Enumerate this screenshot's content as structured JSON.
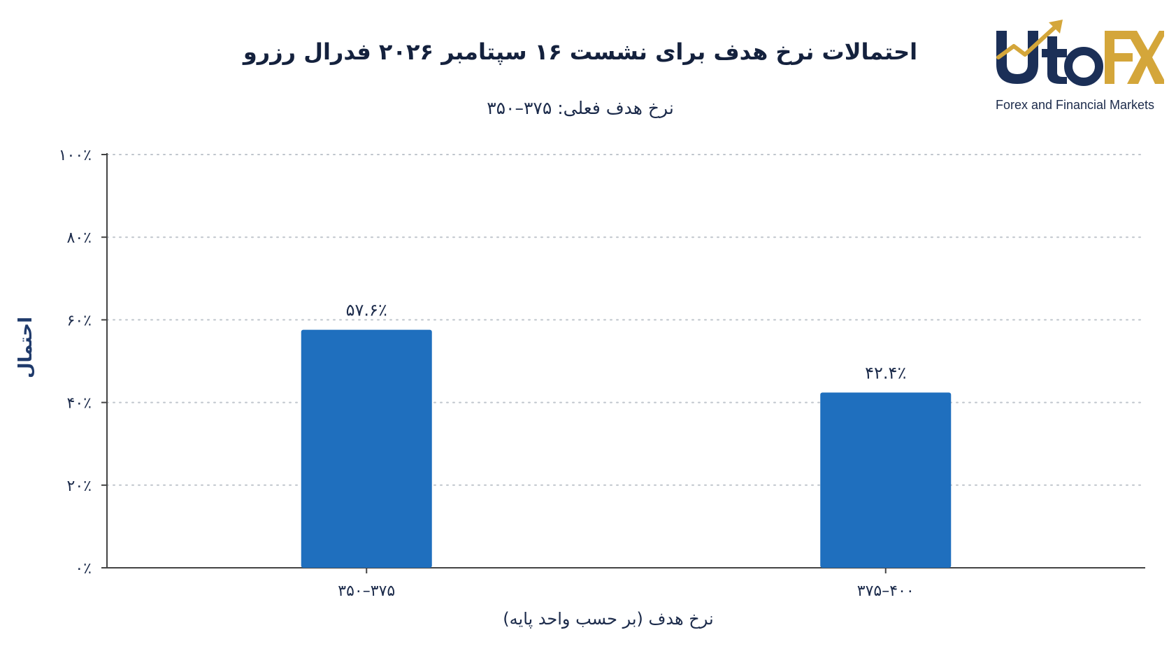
{
  "header": {
    "title": "احتمالات نرخ هدف برای نشست ۱۶ سپتامبر ۲۰۲۶ فدرال رزرو",
    "subtitle": "نرخ هدف فعلی: ۳۷۵–۳۵۰"
  },
  "logo": {
    "brand": "UtoFX",
    "tagline": "Forex and Financial Markets",
    "colors": {
      "navy": "#1b2f57",
      "gold": "#d4a63a"
    }
  },
  "colors": {
    "bar": "#1f6fbe",
    "grid": "#bfc5cc",
    "axis": "#444444",
    "text": "#1b2a4a"
  },
  "chart_data": {
    "type": "bar",
    "title": "احتمالات نرخ هدف برای نشست ۱۶ سپتامبر ۲۰۲۶ فدرال رزرو",
    "subtitle": "نرخ هدف فعلی: ۳۷۵–۳۵۰",
    "categories": [
      "۳۵۰–۳۷۵",
      "۳۷۵–۴۰۰"
    ],
    "values": [
      57.6,
      42.4
    ],
    "value_labels": [
      "۵۷.۶٪",
      "۴۲.۴٪"
    ],
    "xlabel": "نرخ هدف (بر حسب واحد پایه)",
    "ylabel": "احتمال",
    "ylim": [
      0,
      100
    ],
    "yticks": [
      0,
      20,
      40,
      60,
      80,
      100
    ],
    "ytick_labels": [
      "۰٪",
      "۲۰٪",
      "۴۰٪",
      "۶۰٪",
      "۸۰٪",
      "۱۰۰٪"
    ],
    "grid": true,
    "grid_style": "dotted"
  }
}
